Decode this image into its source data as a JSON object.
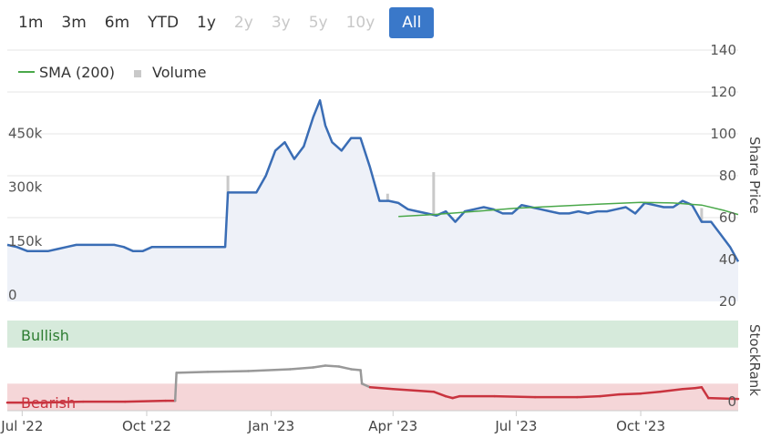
{
  "range_selector": {
    "buttons": [
      {
        "label": "1m",
        "state": "enabled"
      },
      {
        "label": "3m",
        "state": "enabled"
      },
      {
        "label": "6m",
        "state": "enabled"
      },
      {
        "label": "YTD",
        "state": "enabled"
      },
      {
        "label": "1y",
        "state": "enabled"
      },
      {
        "label": "2y",
        "state": "disabled"
      },
      {
        "label": "3y",
        "state": "disabled"
      },
      {
        "label": "5y",
        "state": "disabled"
      },
      {
        "label": "10y",
        "state": "disabled"
      },
      {
        "label": "All",
        "state": "active"
      }
    ]
  },
  "colors": {
    "price": "#3a6db5",
    "price_fill": "#eef1f8",
    "sma": "#4aa84a",
    "volume": "#c9c9c9",
    "rank_grey": "#999999",
    "rank_red": "#c9343f",
    "bullish_band": "#d6eadb",
    "bearish_band": "#f5d6d8",
    "bullish_text": "#2e7d32",
    "bearish_text": "#c9343f"
  },
  "chart_data": [
    {
      "type": "line",
      "legend": [
        "SMA (200)",
        "Volume"
      ],
      "legend_placement": "top-left",
      "y_axis_right": {
        "title": "Share Price",
        "ticks": [
          20,
          40,
          60,
          80,
          100,
          120,
          140
        ],
        "range": [
          20,
          140
        ]
      },
      "y_axis_left": {
        "title": "",
        "ticks": [
          "0",
          "150k",
          "300k",
          "450k"
        ],
        "range": [
          0,
          700000
        ]
      },
      "x_axis": {
        "ticks": [
          "Jul '22",
          "Oct '22",
          "Jan '23",
          "Apr '23",
          "Jul '23",
          "Oct '23"
        ],
        "range": [
          "2022-06-20",
          "2023-12-12"
        ]
      },
      "series": [
        {
          "name": "Share Price",
          "x": [
            "2022-06-20",
            "2022-06-27",
            "2022-07-05",
            "2022-07-12",
            "2022-07-20",
            "2022-07-27",
            "2022-08-03",
            "2022-08-10",
            "2022-08-17",
            "2022-08-24",
            "2022-08-31",
            "2022-09-07",
            "2022-09-14",
            "2022-09-21",
            "2022-09-28",
            "2022-10-05",
            "2022-10-12",
            "2022-10-19",
            "2022-10-26",
            "2022-11-02",
            "2022-11-09",
            "2022-11-16",
            "2022-11-23",
            "2022-11-28",
            "2022-11-30",
            "2022-12-07",
            "2022-12-14",
            "2022-12-21",
            "2022-12-28",
            "2023-01-04",
            "2023-01-11",
            "2023-01-18",
            "2023-01-25",
            "2023-02-01",
            "2023-02-06",
            "2023-02-10",
            "2023-02-15",
            "2023-02-22",
            "2023-03-01",
            "2023-03-08",
            "2023-03-15",
            "2023-03-22",
            "2023-03-29",
            "2023-04-05",
            "2023-04-12",
            "2023-04-19",
            "2023-04-26",
            "2023-05-03",
            "2023-05-10",
            "2023-05-17",
            "2023-05-24",
            "2023-05-31",
            "2023-06-07",
            "2023-06-14",
            "2023-06-21",
            "2023-06-28",
            "2023-07-05",
            "2023-07-12",
            "2023-07-19",
            "2023-07-26",
            "2023-08-02",
            "2023-08-09",
            "2023-08-16",
            "2023-08-23",
            "2023-08-30",
            "2023-09-06",
            "2023-09-13",
            "2023-09-20",
            "2023-09-27",
            "2023-10-04",
            "2023-10-11",
            "2023-10-18",
            "2023-10-25",
            "2023-11-01",
            "2023-11-08",
            "2023-11-15",
            "2023-11-22",
            "2023-11-29",
            "2023-12-06",
            "2023-12-12"
          ],
          "values": [
            47,
            46,
            44,
            44,
            44,
            45,
            46,
            47,
            47,
            47,
            47,
            47,
            46,
            44,
            44,
            46,
            46,
            46,
            46,
            46,
            46,
            46,
            46,
            46,
            72,
            72,
            72,
            72,
            80,
            92,
            96,
            88,
            94,
            108,
            116,
            104,
            96,
            92,
            98,
            98,
            84,
            68,
            68,
            67,
            64,
            63,
            62,
            61,
            63,
            58,
            63,
            64,
            65,
            64,
            62,
            62,
            66,
            65,
            64,
            63,
            62,
            62,
            63,
            62,
            63,
            63,
            64,
            65,
            62,
            67,
            66,
            65,
            65,
            68,
            66,
            58,
            58,
            52,
            46,
            39
          ]
        },
        {
          "name": "SMA (200)",
          "x": [
            "2023-04-05",
            "2023-05-01",
            "2023-06-01",
            "2023-07-01",
            "2023-08-01",
            "2023-09-01",
            "2023-10-01",
            "2023-10-25",
            "2023-11-15",
            "2023-12-01",
            "2023-12-12"
          ],
          "values": [
            60.5,
            61.5,
            63,
            64.5,
            65.5,
            66.5,
            67.3,
            67,
            66,
            63.5,
            61.5
          ]
        },
        {
          "name": "Volume",
          "x": [
            "2022-06-25",
            "2022-07-10",
            "2022-07-25",
            "2022-08-20",
            "2022-09-10",
            "2022-10-01",
            "2022-10-22",
            "2022-11-10",
            "2022-11-30",
            "2022-12-05",
            "2022-12-15",
            "2022-12-28",
            "2023-01-05",
            "2023-01-10",
            "2023-01-20",
            "2023-02-01",
            "2023-02-10",
            "2023-02-20",
            "2023-03-01",
            "2023-03-10",
            "2023-03-20",
            "2023-03-28",
            "2023-04-05",
            "2023-04-15",
            "2023-04-25",
            "2023-05-01",
            "2023-05-12",
            "2023-05-25",
            "2023-06-10",
            "2023-06-20",
            "2023-07-01",
            "2023-07-20",
            "2023-08-10",
            "2023-08-25",
            "2023-09-10",
            "2023-09-20",
            "2023-10-05",
            "2023-10-20",
            "2023-11-05",
            "2023-11-15",
            "2023-11-28",
            "2023-12-05"
          ],
          "values": [
            40000,
            60000,
            30000,
            50000,
            35000,
            25000,
            45000,
            20000,
            350000,
            120000,
            80000,
            150000,
            380000,
            90000,
            200000,
            150000,
            110000,
            180000,
            230000,
            60000,
            110000,
            300000,
            140000,
            60000,
            80000,
            360000,
            110000,
            95000,
            70000,
            120000,
            40000,
            95000,
            190000,
            60000,
            85000,
            200000,
            100000,
            60000,
            170000,
            260000,
            90000,
            140000
          ]
        }
      ]
    },
    {
      "type": "line",
      "y_axis_right": {
        "title": "StockRank",
        "ticks": [
          0
        ]
      },
      "bands": [
        "Bullish",
        "Bearish"
      ],
      "series": [
        {
          "name": "StockRank",
          "x": [
            "2022-06-20",
            "2022-07-15",
            "2022-08-15",
            "2022-09-15",
            "2022-10-15",
            "2022-10-22",
            "2022-10-23",
            "2022-11-15",
            "2022-12-15",
            "2023-01-15",
            "2023-02-01",
            "2023-02-10",
            "2023-02-20",
            "2023-03-01",
            "2023-03-08",
            "2023-03-09",
            "2023-03-15",
            "2023-04-01",
            "2023-05-01",
            "2023-05-10",
            "2023-05-15",
            "2023-05-20",
            "2023-06-15",
            "2023-07-15",
            "2023-08-15",
            "2023-09-01",
            "2023-09-15",
            "2023-10-01",
            "2023-10-15",
            "2023-11-01",
            "2023-11-10",
            "2023-11-15",
            "2023-11-20",
            "2023-12-12"
          ],
          "values": [
            9,
            9,
            10,
            10,
            11,
            11,
            42,
            43,
            44,
            46,
            48,
            50,
            49,
            46,
            45,
            30,
            26,
            24,
            21,
            16,
            14,
            16,
            16,
            15,
            15,
            16,
            18,
            19,
            21,
            24,
            25,
            26,
            14,
            13
          ]
        }
      ]
    }
  ]
}
